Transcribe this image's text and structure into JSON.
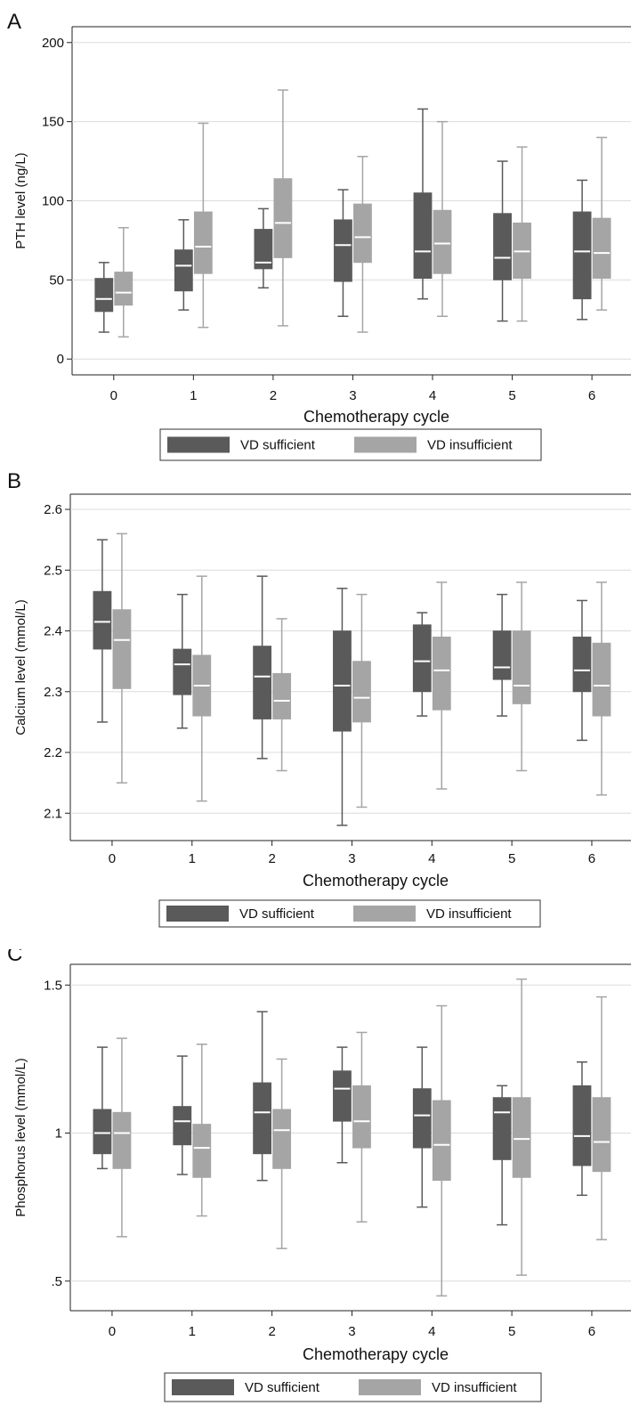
{
  "chart_data": [
    {
      "panel_label": "A",
      "type": "boxplot",
      "xlabel": "Chemotherapy cycle",
      "ylabel": "PTH level (ng/L)",
      "categories": [
        "0",
        "1",
        "2",
        "3",
        "4",
        "5",
        "6"
      ],
      "y_ticks": [
        {
          "value": 0,
          "label": "0"
        },
        {
          "value": 50,
          "label": "50"
        },
        {
          "value": 100,
          "label": "100"
        },
        {
          "value": 150,
          "label": "150"
        },
        {
          "value": 200,
          "label": "200"
        }
      ],
      "ylim": [
        -10,
        210
      ],
      "grid": true,
      "legend_position": "bottom",
      "series": [
        {
          "name": "VD sufficient",
          "color": "#5a5a5a",
          "median_color": "#ffffff",
          "boxes": [
            {
              "min": 17,
              "q1": 30,
              "median": 38,
              "q3": 51,
              "max": 61
            },
            {
              "min": 31,
              "q1": 43,
              "median": 59,
              "q3": 69,
              "max": 88
            },
            {
              "min": 45,
              "q1": 57,
              "median": 61,
              "q3": 82,
              "max": 95
            },
            {
              "min": 27,
              "q1": 49,
              "median": 72,
              "q3": 88,
              "max": 107
            },
            {
              "min": 38,
              "q1": 51,
              "median": 68,
              "q3": 105,
              "max": 158
            },
            {
              "min": 24,
              "q1": 50,
              "median": 64,
              "q3": 92,
              "max": 125
            },
            {
              "min": 25,
              "q1": 38,
              "median": 68,
              "q3": 93,
              "max": 113
            }
          ]
        },
        {
          "name": "VD insufficient",
          "color": "#a5a5a5",
          "median_color": "#ffffff",
          "boxes": [
            {
              "min": 14,
              "q1": 34,
              "median": 42,
              "q3": 55,
              "max": 83
            },
            {
              "min": 20,
              "q1": 54,
              "median": 71,
              "q3": 93,
              "max": 149
            },
            {
              "min": 21,
              "q1": 64,
              "median": 86,
              "q3": 114,
              "max": 170
            },
            {
              "min": 17,
              "q1": 61,
              "median": 77,
              "q3": 98,
              "max": 128
            },
            {
              "min": 27,
              "q1": 54,
              "median": 73,
              "q3": 94,
              "max": 150
            },
            {
              "min": 24,
              "q1": 51,
              "median": 68,
              "q3": 86,
              "max": 134
            },
            {
              "min": 31,
              "q1": 51,
              "median": 67,
              "q3": 89,
              "max": 140
            }
          ]
        }
      ]
    },
    {
      "panel_label": "B",
      "type": "boxplot",
      "xlabel": "Chemotherapy cycle",
      "ylabel": "Calcium level (mmol/L)",
      "categories": [
        "0",
        "1",
        "2",
        "3",
        "4",
        "5",
        "6"
      ],
      "y_ticks": [
        {
          "value": 2.1,
          "label": "2.1"
        },
        {
          "value": 2.2,
          "label": "2.2"
        },
        {
          "value": 2.3,
          "label": "2.3"
        },
        {
          "value": 2.4,
          "label": "2.4"
        },
        {
          "value": 2.5,
          "label": "2.5"
        },
        {
          "value": 2.6,
          "label": "2.6"
        }
      ],
      "ylim": [
        2.055,
        2.625
      ],
      "grid": true,
      "legend_position": "bottom",
      "series": [
        {
          "name": "VD sufficient",
          "color": "#5a5a5a",
          "median_color": "#ffffff",
          "boxes": [
            {
              "min": 2.25,
              "q1": 2.37,
              "median": 2.415,
              "q3": 2.465,
              "max": 2.55
            },
            {
              "min": 2.24,
              "q1": 2.295,
              "median": 2.345,
              "q3": 2.37,
              "max": 2.46
            },
            {
              "min": 2.19,
              "q1": 2.255,
              "median": 2.325,
              "q3": 2.375,
              "max": 2.49
            },
            {
              "min": 2.08,
              "q1": 2.235,
              "median": 2.31,
              "q3": 2.4,
              "max": 2.47
            },
            {
              "min": 2.26,
              "q1": 2.3,
              "median": 2.35,
              "q3": 2.41,
              "max": 2.43
            },
            {
              "min": 2.26,
              "q1": 2.32,
              "median": 2.34,
              "q3": 2.4,
              "max": 2.46
            },
            {
              "min": 2.22,
              "q1": 2.3,
              "median": 2.335,
              "q3": 2.39,
              "max": 2.45
            }
          ]
        },
        {
          "name": "VD insufficient",
          "color": "#a5a5a5",
          "median_color": "#ffffff",
          "boxes": [
            {
              "min": 2.15,
              "q1": 2.305,
              "median": 2.385,
              "q3": 2.435,
              "max": 2.56
            },
            {
              "min": 2.12,
              "q1": 2.26,
              "median": 2.31,
              "q3": 2.36,
              "max": 2.49
            },
            {
              "min": 2.17,
              "q1": 2.255,
              "median": 2.285,
              "q3": 2.33,
              "max": 2.42
            },
            {
              "min": 2.11,
              "q1": 2.25,
              "median": 2.29,
              "q3": 2.35,
              "max": 2.46
            },
            {
              "min": 2.14,
              "q1": 2.27,
              "median": 2.335,
              "q3": 2.39,
              "max": 2.48
            },
            {
              "min": 2.17,
              "q1": 2.28,
              "median": 2.31,
              "q3": 2.4,
              "max": 2.48
            },
            {
              "min": 2.13,
              "q1": 2.26,
              "median": 2.31,
              "q3": 2.38,
              "max": 2.48
            }
          ]
        }
      ]
    },
    {
      "panel_label": "C",
      "type": "boxplot",
      "xlabel": "Chemotherapy cycle",
      "ylabel": "Phosphorus level (mmol/L)",
      "categories": [
        "0",
        "1",
        "2",
        "3",
        "4",
        "5",
        "6"
      ],
      "y_ticks": [
        {
          "value": 0.5,
          "label": ".5"
        },
        {
          "value": 1.0,
          "label": "1"
        },
        {
          "value": 1.5,
          "label": "1.5"
        }
      ],
      "ylim": [
        0.4,
        1.57
      ],
      "grid": true,
      "legend_position": "bottom",
      "series": [
        {
          "name": "VD sufficient",
          "color": "#5a5a5a",
          "median_color": "#ffffff",
          "boxes": [
            {
              "min": 0.88,
              "q1": 0.93,
              "median": 1.0,
              "q3": 1.08,
              "max": 1.29
            },
            {
              "min": 0.86,
              "q1": 0.96,
              "median": 1.04,
              "q3": 1.09,
              "max": 1.26
            },
            {
              "min": 0.84,
              "q1": 0.93,
              "median": 1.07,
              "q3": 1.17,
              "max": 1.41
            },
            {
              "min": 0.9,
              "q1": 1.04,
              "median": 1.15,
              "q3": 1.21,
              "max": 1.29
            },
            {
              "min": 0.75,
              "q1": 0.95,
              "median": 1.06,
              "q3": 1.15,
              "max": 1.29
            },
            {
              "min": 0.69,
              "q1": 0.91,
              "median": 1.07,
              "q3": 1.12,
              "max": 1.16
            },
            {
              "min": 0.79,
              "q1": 0.89,
              "median": 0.99,
              "q3": 1.16,
              "max": 1.24
            }
          ]
        },
        {
          "name": "VD insufficient",
          "color": "#a5a5a5",
          "median_color": "#ffffff",
          "boxes": [
            {
              "min": 0.65,
              "q1": 0.88,
              "median": 1.0,
              "q3": 1.07,
              "max": 1.32
            },
            {
              "min": 0.72,
              "q1": 0.85,
              "median": 0.95,
              "q3": 1.03,
              "max": 1.3
            },
            {
              "min": 0.61,
              "q1": 0.88,
              "median": 1.01,
              "q3": 1.08,
              "max": 1.25
            },
            {
              "min": 0.7,
              "q1": 0.95,
              "median": 1.04,
              "q3": 1.16,
              "max": 1.34
            },
            {
              "min": 0.45,
              "q1": 0.84,
              "median": 0.96,
              "q3": 1.11,
              "max": 1.43
            },
            {
              "min": 0.52,
              "q1": 0.85,
              "median": 0.98,
              "q3": 1.12,
              "max": 1.52
            },
            {
              "min": 0.64,
              "q1": 0.87,
              "median": 0.97,
              "q3": 1.12,
              "max": 1.46
            }
          ]
        }
      ]
    }
  ]
}
